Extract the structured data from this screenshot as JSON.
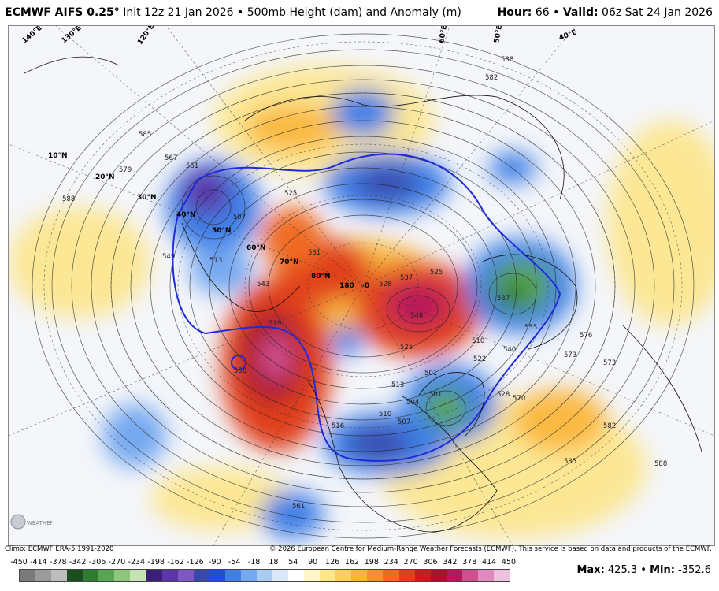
{
  "header": {
    "model": "ECMWF AIFS 0.25",
    "degree": "°",
    "init": "Init 12z 21 Jan 2026",
    "bullet": "•",
    "product": "500mb Height (dam) and Anomaly (m)",
    "hour_label": "Hour:",
    "hour_value": "66",
    "valid_label": "Valid:",
    "valid_value": "06z Sat 24 Jan 2026"
  },
  "map": {
    "lat_labels": [
      "10°N",
      "20°N",
      "30°N",
      "40°N",
      "50°N",
      "60°N",
      "70°N",
      "80°N"
    ],
    "lon_labels": [
      "130°E",
      "140°E",
      "120°E",
      "180",
      "0",
      "60°E",
      "50°E",
      "40°E"
    ],
    "contour_labels": [
      "585",
      "579",
      "588",
      "567",
      "561",
      "549",
      "543",
      "525",
      "513",
      "507",
      "528",
      "537",
      "525",
      "546",
      "531",
      "519",
      "510",
      "501",
      "504",
      "507",
      "510",
      "516",
      "522",
      "528",
      "537",
      "555",
      "573",
      "576",
      "570",
      "582",
      "588",
      "582",
      "561",
      "558",
      "540",
      "525",
      "501",
      "513",
      "588",
      "573",
      "585"
    ]
  },
  "colors": {
    "accent_blue": "#1f2bd6",
    "palette": [
      "#7a7a7a",
      "#9a9a9a",
      "#bdbdbd",
      "#1b4d1f",
      "#2e7d32",
      "#5aa650",
      "#8fc77a",
      "#c6e3b5",
      "#3a1f7a",
      "#5c35a8",
      "#7e57c2",
      "#3949ab",
      "#1e4fd6",
      "#3f7fe6",
      "#74a8f0",
      "#a9cbf6",
      "#dbe8fa",
      "#ffffff",
      "#fff7c4",
      "#fde68a",
      "#fbd05a",
      "#f9b43a",
      "#f5902b",
      "#f06a20",
      "#e0401a",
      "#c81d1d",
      "#a9122a",
      "#b7185c",
      "#d0508f",
      "#e08ac0",
      "#eec1de"
    ]
  },
  "footer": {
    "climo": "Climo: ECMWF ERA-5 1991-2020",
    "copyright": "© 2026 European Centre for Medium-Range Weather Forecasts (ECMWF). This service is based on data and products of the ECMWF."
  },
  "colorbar": {
    "ticks": [
      "-450",
      "-414",
      "-378",
      "-342",
      "-306",
      "-270",
      "-234",
      "-198",
      "-162",
      "-126",
      "-90",
      "-54",
      "-18",
      "18",
      "54",
      "90",
      "126",
      "162",
      "198",
      "234",
      "270",
      "306",
      "342",
      "378",
      "414",
      "450"
    ]
  },
  "stats": {
    "max_label": "Max:",
    "max_value": "425.3",
    "min_label": "Min:",
    "min_value": "-352.6",
    "bullet": "•"
  },
  "logo": {
    "text": "WEATHERBELL"
  }
}
